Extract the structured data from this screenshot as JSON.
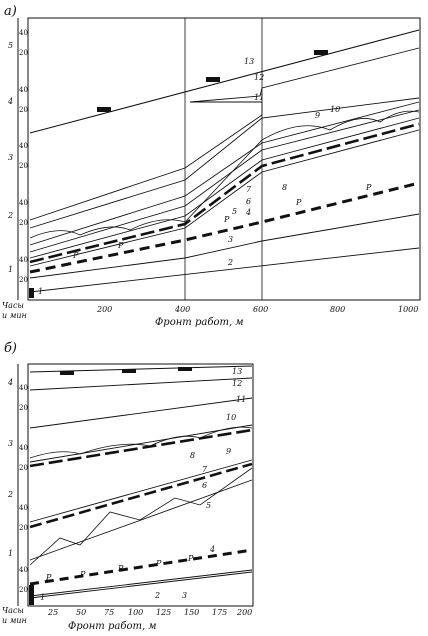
{
  "panel_a": {
    "label": "а)",
    "y_header": [
      "Часы",
      "и мин"
    ],
    "hours": [
      "1",
      "2",
      "3",
      "4",
      "5"
    ],
    "minute_ticks": [
      "20",
      "40"
    ],
    "x_ticks": [
      "200",
      "400",
      "600",
      "800",
      "1000"
    ],
    "x_axis_label": "Фронт работ, м",
    "curve_numbers": [
      "1",
      "2",
      "3",
      "4",
      "5",
      "6",
      "7",
      "8",
      "9",
      "10",
      "11",
      "12",
      "13"
    ],
    "r_mark": "Р"
  },
  "panel_b": {
    "label": "б)",
    "y_header": [
      "Часы",
      "и мин"
    ],
    "hours": [
      "1",
      "2",
      "3",
      "4"
    ],
    "minute_ticks": [
      "20",
      "40"
    ],
    "x_ticks": [
      "25",
      "50",
      "75",
      "100",
      "125",
      "150",
      "175",
      "200"
    ],
    "x_axis_label": "Фронт работ, м",
    "curve_numbers": [
      "1",
      "2",
      "3",
      "4",
      "5",
      "6",
      "7",
      "8",
      "9",
      "10",
      "11",
      "12",
      "13"
    ],
    "r_mark": "Р"
  },
  "colors": {
    "ink": "#111111",
    "paper": "#ffffff"
  }
}
